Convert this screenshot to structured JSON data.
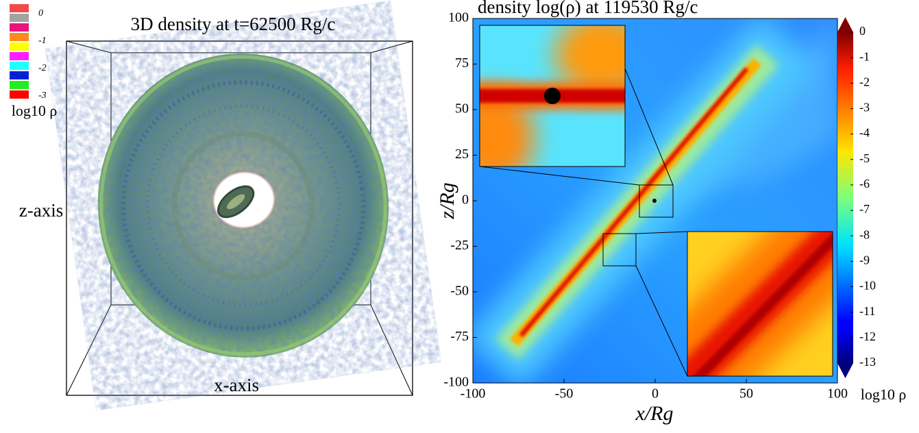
{
  "chart_data": [
    {
      "type": "volume-render",
      "title": "3D density at t=62500 Rg/c",
      "xlabel": "x-axis",
      "ylabel": "z-axis",
      "legend": {
        "colors": [
          "#f24a4a",
          "#a3a3a3",
          "#e8157c",
          "#ff8a1c",
          "#ffff00",
          "#ff20ff",
          "#20ffff",
          "#0020d8",
          "#20ee20",
          "#ff0000"
        ],
        "ticks": [
          0,
          -1,
          -2,
          -3
        ],
        "label": "log10 ρ"
      }
    },
    {
      "type": "heatmap",
      "title": "density log(ρ) at 119530 Rg/c",
      "xlabel": "x/Rg",
      "ylabel": "z/Rg",
      "xlim": [
        -100,
        100
      ],
      "ylim": [
        -100,
        100
      ],
      "xticks": [
        -100,
        -50,
        0,
        50,
        100
      ],
      "yticks": [
        -100,
        -75,
        -50,
        -25,
        0,
        25,
        50,
        75,
        100
      ],
      "colormap": "jet",
      "colorbar": {
        "lim": [
          -13,
          0
        ],
        "ticks": [
          0,
          -1,
          -2,
          -3,
          -4,
          -5,
          -6,
          -7,
          -8,
          -9,
          -10,
          -11,
          -12,
          -13
        ],
        "label": "log10 ρ"
      }
    }
  ]
}
